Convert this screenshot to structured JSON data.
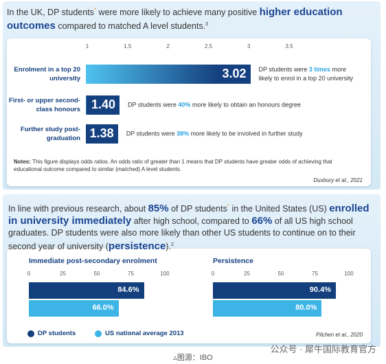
{
  "panels": [
    {
      "heading": [
        {
          "text": "In the UK, DP students"
        },
        {
          "text": "*",
          "style": "marker"
        },
        {
          "text": " were more likely to achieve many positive "
        },
        {
          "text": "higher education outcomes",
          "style": "highlight"
        },
        {
          "text": " compared to matched A level students."
        },
        {
          "text": "3",
          "style": "sup"
        }
      ],
      "notes_label": "Notes:",
      "notes": " This figure displays odds ratios. An odds ratio of greater than 1 means that DP students have greater odds of achieving that educational outcome compared to similar (matched) A level students.",
      "source": "Duxbury et al., 2021"
    },
    {
      "heading": [
        {
          "text": "In line with previous research, about "
        },
        {
          "text": "85%",
          "style": "highlight"
        },
        {
          "text": " of DP students"
        },
        {
          "text": "*",
          "style": "marker"
        },
        {
          "text": " in the United States (US) "
        },
        {
          "text": "enrolled in university immediately",
          "style": "highlight"
        },
        {
          "text": " after high school, compared to "
        },
        {
          "text": "66%",
          "style": "highlight"
        },
        {
          "text": " of all US high school graduates. DP students were also more likely than other US students to continue on to their second year of university ("
        },
        {
          "text": "persistence",
          "style": "highlight"
        },
        {
          "text": ")."
        },
        {
          "text": "2",
          "style": "sup"
        }
      ],
      "source": "Pilchen et al., 2020"
    }
  ],
  "chart_data": [
    {
      "type": "bar",
      "orientation": "horizontal",
      "categories": [
        "Enrolment in a top 20 university",
        "First- or upper second-class honours",
        "Further study post-graduation"
      ],
      "values": [
        3.02,
        1.4,
        1.38
      ],
      "value_labels": [
        "3.02",
        "1.40",
        "1.38"
      ],
      "xlim": [
        1,
        3.5
      ],
      "xticks": [
        1,
        1.5,
        2,
        2.5,
        3,
        3.5
      ],
      "color_start": "#4fc3f0",
      "color": "#15407f",
      "annotations": [
        [
          "DP students were ",
          "3 times",
          " more likely to  enrol in a top 20 university"
        ],
        [
          "DP students were ",
          "40%",
          " more likely to obtain an honours degree"
        ],
        [
          "DP students were ",
          "38%",
          " more likely to be involved in further study"
        ]
      ]
    },
    {
      "type": "bar",
      "orientation": "horizontal",
      "facets": true,
      "categories": [
        "Immediate post-secondary enrolment",
        "Persistence"
      ],
      "series": [
        {
          "name": "DP students",
          "color": "#143f7d",
          "values": [
            84.6,
            90.4
          ],
          "value_labels": [
            "84.6%",
            "90.4%"
          ]
        },
        {
          "name": "US national average 2013",
          "color": "#3cb4e6",
          "values": [
            66.0,
            80.0
          ],
          "value_labels": [
            "66.0%",
            "80.0%"
          ]
        }
      ],
      "xlim": [
        0,
        100
      ],
      "xticks": [
        0,
        25,
        50,
        75,
        100
      ],
      "legend": "bottom-left"
    }
  ],
  "footer": {
    "caption": "▵图源：IBO",
    "watermark": "公众号 · 犀牛国际教育官方"
  }
}
